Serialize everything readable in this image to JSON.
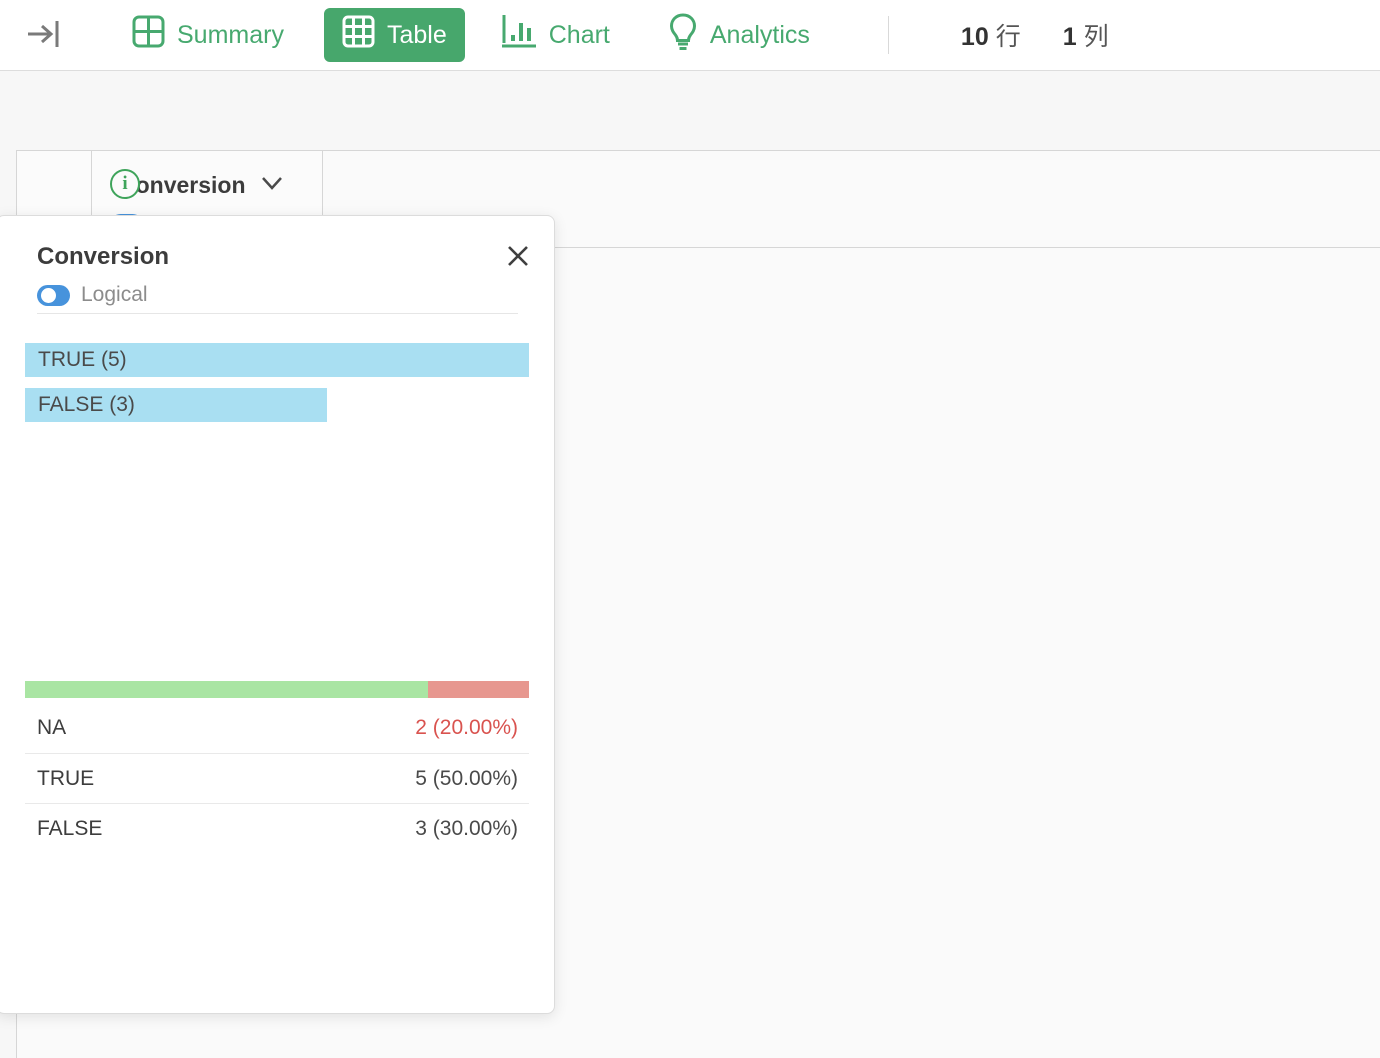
{
  "toolbar": {
    "views": [
      {
        "label": "Summary",
        "active": false
      },
      {
        "label": "Table",
        "active": true
      },
      {
        "label": "Chart",
        "active": false
      },
      {
        "label": "Analytics",
        "active": false
      }
    ],
    "rows_count": "10",
    "rows_unit": "行",
    "cols_count": "1",
    "cols_unit": "列"
  },
  "table": {
    "column_header": "Conversion",
    "column_type": "Logical"
  },
  "popup": {
    "title": "Conversion",
    "type_label": "Logical",
    "histogram": {
      "type": "bar",
      "bars": [
        {
          "label": "TRUE (5)",
          "value": "TRUE",
          "count": 5
        },
        {
          "label": "FALSE (3)",
          "value": "FALSE",
          "count": 3
        }
      ]
    },
    "quality_bar": {
      "valid_pct": 80,
      "na_pct": 20
    },
    "stats": [
      {
        "label": "NA",
        "value": "2 (20.00%)",
        "highlight": "na"
      },
      {
        "label": "TRUE",
        "value": "5 (50.00%)",
        "highlight": "none"
      },
      {
        "label": "FALSE",
        "value": "3 (30.00%)",
        "highlight": "none"
      }
    ]
  },
  "icons": {
    "collapse": "arrow-to-bar",
    "summary": "grid-2x2",
    "table": "grid-3x3",
    "chart": "bar-chart",
    "analytics": "lightbulb",
    "column_info": "info-circle",
    "column_menu": "chevron-down",
    "logical_type": "toggle",
    "popup_close": "x"
  },
  "colors": {
    "accent_green": "#47a76c",
    "bar_blue": "#a9dff2",
    "valid_green": "#a9e5a3",
    "na_red_bar": "#e7978f",
    "na_red_text": "#d9534f",
    "logical_blue": "#4793dc"
  }
}
